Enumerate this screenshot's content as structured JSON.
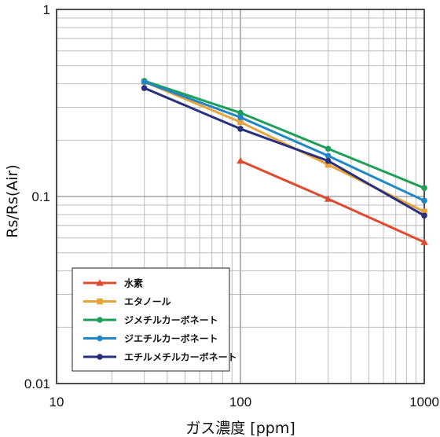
{
  "chart_data": {
    "type": "line",
    "xlabel": "ガス濃度 [ppm]",
    "ylabel": "Rs/Rs(Air)",
    "xscale": "log",
    "yscale": "log",
    "xlim": [
      10,
      1000
    ],
    "ylim": [
      0.01,
      1
    ],
    "grid": true,
    "legend_position": "bottom-left",
    "x_ticks": [
      {
        "value": 10,
        "label": "10"
      },
      {
        "value": 100,
        "label": "100"
      },
      {
        "value": 1000,
        "label": "1000"
      }
    ],
    "y_ticks": [
      {
        "value": 0.01,
        "label": "0.01"
      },
      {
        "value": 0.1,
        "label": "0.1"
      },
      {
        "value": 1,
        "label": "1"
      }
    ],
    "series": [
      {
        "name": "水素",
        "color": "#e04a2f",
        "marker": "triangle",
        "x": [
          100,
          300,
          1000
        ],
        "y": [
          0.155,
          0.097,
          0.057
        ]
      },
      {
        "name": "エタノール",
        "color": "#e8a33a",
        "marker": "square",
        "x": [
          30,
          100,
          300,
          1000
        ],
        "y": [
          0.41,
          0.25,
          0.148,
          0.083
        ]
      },
      {
        "name": "ジメチルカーボネート",
        "color": "#1e9e57",
        "marker": "circle",
        "x": [
          30,
          100,
          300,
          1000
        ],
        "y": [
          0.415,
          0.28,
          0.18,
          0.111
        ]
      },
      {
        "name": "ジエチルカーボネート",
        "color": "#1f86c8",
        "marker": "circle",
        "x": [
          30,
          100,
          300,
          1000
        ],
        "y": [
          0.41,
          0.265,
          0.165,
          0.095
        ]
      },
      {
        "name": "エチルメチルカーボネート",
        "color": "#27307e",
        "marker": "circle",
        "x": [
          30,
          100,
          300,
          1000
        ],
        "y": [
          0.38,
          0.23,
          0.155,
          0.079
        ]
      }
    ]
  }
}
